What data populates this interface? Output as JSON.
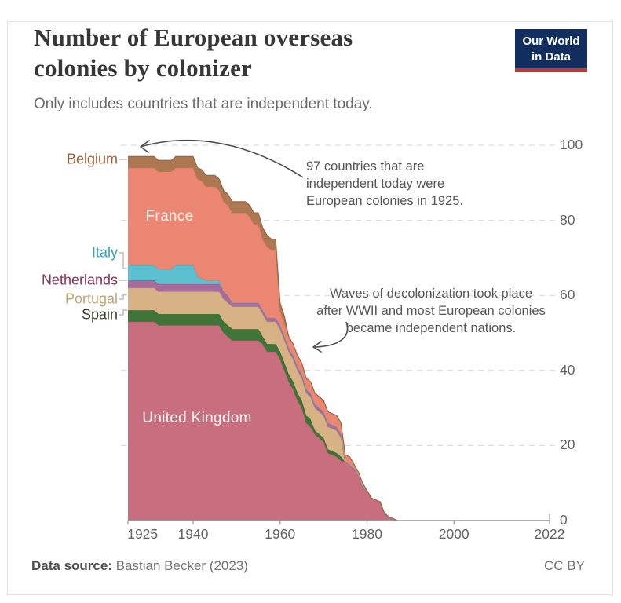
{
  "header": {
    "title_line1": "Number of European overseas",
    "title_line2": "colonies by colonizer",
    "subtitle": "Only includes countries that are independent today."
  },
  "logo": {
    "line1": "Our World",
    "line2": "in Data",
    "bg_color": "#112e5f",
    "accent_color": "#c4372e"
  },
  "footer": {
    "source_label": "Data source:",
    "source_value": "Bastian Becker (2023)",
    "license": "CC BY"
  },
  "chart_data": {
    "type": "area",
    "stacked": true,
    "title": "Number of European overseas colonies by colonizer",
    "subtitle": "Only includes countries that are independent today.",
    "xlabel": "",
    "ylabel": "",
    "xlim": [
      1925,
      2022
    ],
    "ylim": [
      0,
      100
    ],
    "xticks": [
      "1925",
      "1940",
      "1960",
      "1980",
      "2000",
      "2022"
    ],
    "yticks": [
      "0",
      "20",
      "40",
      "60",
      "80",
      "100"
    ],
    "grid": "horizontal-dashed",
    "legend_position": "left-of-chart labels; France and United Kingdom labeled inside areas",
    "series": [
      {
        "name": "United Kingdom",
        "label_style": "inline",
        "fill": "#c86e7f",
        "edge": "#b05a6e",
        "label_color": "#fdf6f4",
        "points": [
          [
            1925,
            53
          ],
          [
            1931,
            53
          ],
          [
            1932,
            52
          ],
          [
            1946,
            52
          ],
          [
            1947,
            50
          ],
          [
            1948,
            49
          ],
          [
            1949,
            48
          ],
          [
            1955,
            48
          ],
          [
            1956,
            47
          ],
          [
            1957,
            45
          ],
          [
            1959,
            45
          ],
          [
            1960,
            43
          ],
          [
            1961,
            40
          ],
          [
            1962,
            37
          ],
          [
            1963,
            35
          ],
          [
            1964,
            32
          ],
          [
            1965,
            30
          ],
          [
            1966,
            26
          ],
          [
            1967,
            25
          ],
          [
            1968,
            23
          ],
          [
            1970,
            21
          ],
          [
            1971,
            18
          ],
          [
            1973,
            17
          ],
          [
            1974,
            16
          ],
          [
            1976,
            15
          ],
          [
            1977,
            14
          ],
          [
            1978,
            12
          ],
          [
            1979,
            9
          ],
          [
            1980,
            8
          ],
          [
            1981,
            6
          ],
          [
            1983,
            5
          ],
          [
            1984,
            2
          ],
          [
            1985,
            1
          ],
          [
            1987,
            0
          ],
          [
            2022,
            0
          ]
        ]
      },
      {
        "name": "Spain",
        "label_style": "left",
        "fill": "#3e7435",
        "edge": "#305a27",
        "label_color": "#35462f",
        "points": [
          [
            1925,
            3
          ],
          [
            1955,
            3
          ],
          [
            1956,
            2
          ],
          [
            1967,
            2
          ],
          [
            1968,
            1
          ],
          [
            1974,
            1
          ],
          [
            1975,
            0
          ],
          [
            2022,
            0
          ]
        ]
      },
      {
        "name": "Portugal",
        "label_style": "left",
        "fill": "#d6b285",
        "edge": "#c19a63",
        "label_color": "#c3a471",
        "points": [
          [
            1925,
            6
          ],
          [
            1973,
            6
          ],
          [
            1974,
            5
          ],
          [
            1975,
            0
          ],
          [
            2022,
            0
          ]
        ]
      },
      {
        "name": "Netherlands",
        "label_style": "left",
        "fill": "#a86b9e",
        "edge": "#8f5388",
        "label_color": "#8b2f57",
        "points": [
          [
            1925,
            2
          ],
          [
            1948,
            2
          ],
          [
            1949,
            1
          ],
          [
            1974,
            1
          ],
          [
            1975,
            0
          ],
          [
            2022,
            0
          ]
        ]
      },
      {
        "name": "Italy",
        "label_style": "left",
        "fill": "#5cc0d1",
        "edge": "#41aabc",
        "label_color": "#3ba0b5",
        "points": [
          [
            1925,
            4
          ],
          [
            1935,
            4
          ],
          [
            1936,
            5
          ],
          [
            1940,
            5
          ],
          [
            1941,
            2
          ],
          [
            1943,
            1
          ],
          [
            1946,
            1
          ],
          [
            1947,
            0
          ],
          [
            2022,
            0
          ]
        ]
      },
      {
        "name": "France",
        "label_style": "inline",
        "fill": "#eb8672",
        "edge": "#db705c",
        "label_color": "#fdf6f4",
        "points": [
          [
            1925,
            26
          ],
          [
            1942,
            26
          ],
          [
            1943,
            25
          ],
          [
            1945,
            25
          ],
          [
            1946,
            24
          ],
          [
            1952,
            24
          ],
          [
            1953,
            23
          ],
          [
            1954,
            21
          ],
          [
            1955,
            21
          ],
          [
            1956,
            19
          ],
          [
            1957,
            19
          ],
          [
            1958,
            18
          ],
          [
            1959,
            18
          ],
          [
            1960,
            4
          ],
          [
            1962,
            3
          ],
          [
            1974,
            3
          ],
          [
            1975,
            2
          ],
          [
            1976,
            2
          ],
          [
            1977,
            1
          ],
          [
            1979,
            1
          ],
          [
            1980,
            0
          ],
          [
            2022,
            0
          ]
        ]
      },
      {
        "name": "Belgium",
        "label_style": "left",
        "fill": "#ab7851",
        "edge": "#95613c",
        "label_color": "#9c5a33",
        "points": [
          [
            1925,
            3
          ],
          [
            1959,
            3
          ],
          [
            1960,
            2
          ],
          [
            1961,
            2
          ],
          [
            1962,
            0
          ],
          [
            2022,
            0
          ]
        ]
      }
    ],
    "annotations": [
      {
        "lines": [
          "97 countries that are",
          "independent today were",
          "European colonies in 1925."
        ]
      },
      {
        "lines": [
          "Waves of decolonization took place",
          "after WWII and most European colonies",
          "became independent nations."
        ]
      }
    ]
  }
}
